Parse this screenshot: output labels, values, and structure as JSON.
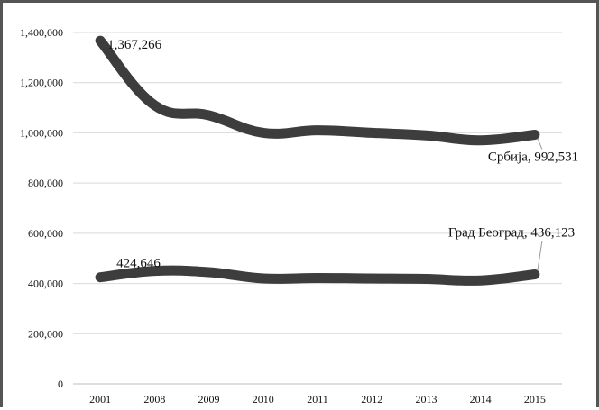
{
  "chart_data": {
    "type": "line",
    "title": "",
    "xlabel": "",
    "ylabel": "",
    "categories": [
      "2001",
      "2008",
      "2009",
      "2010",
      "2011",
      "2012",
      "2013",
      "2014",
      "2015"
    ],
    "ylim": [
      0,
      1400000
    ],
    "yticks": [
      "0",
      "200,000",
      "400,000",
      "600,000",
      "800,000",
      "1,000,000",
      "1,200,000",
      "1,400,000"
    ],
    "grid": true,
    "series": [
      {
        "name": "Србија",
        "values": [
          1367266,
          1110000,
          1070000,
          1000000,
          1010000,
          1000000,
          990000,
          970000,
          992531
        ],
        "color": "#3d3d3d"
      },
      {
        "name": "Град Београд",
        "values": [
          424646,
          450000,
          445000,
          420000,
          422000,
          420000,
          418000,
          412000,
          436123
        ],
        "color": "#3d3d3d"
      }
    ],
    "annotations": [
      {
        "text": "1,367,266",
        "series": 0,
        "point": 0
      },
      {
        "text": "Србија, 992,531",
        "series": 0,
        "point": 8
      },
      {
        "text": "424,646",
        "series": 1,
        "point": 0
      },
      {
        "text": "Град Београд, 436,123",
        "series": 1,
        "point": 8
      }
    ]
  }
}
